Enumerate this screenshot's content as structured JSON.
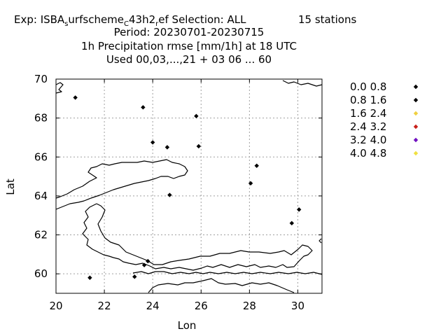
{
  "chart_data": {
    "type": "scatter",
    "title": {
      "line1_pre": "Exp: ISBA",
      "line1_sub1": "s",
      "line1_mid": "urfscheme",
      "line1_sub2": "C",
      "line1_mid2": "43h2",
      "line1_sub3": "r",
      "line1_post": "ef   Selection: ALL",
      "line1_stations": "15 stations",
      "line2": "Period: 20230701-20230715",
      "line3": "1h Precipitation rmse [mm/1h] at  18 UTC",
      "line4": "Used  00,03,...,21  + 03 06 ... 60"
    },
    "xlabel": "Lon",
    "ylabel": "Lat",
    "xlim": [
      20,
      31
    ],
    "ylim": [
      59,
      70
    ],
    "xticks": [
      20,
      22,
      24,
      26,
      28,
      30
    ],
    "yticks": [
      60,
      62,
      64,
      66,
      68,
      70
    ],
    "grid": true,
    "legend_position": "right-outside",
    "legend": [
      {
        "label": "0.0 0.8",
        "color": "#000000"
      },
      {
        "label": "0.8 1.6",
        "color": "#000000"
      },
      {
        "label": "1.6 2.4",
        "color": "#f0d040"
      },
      {
        "label": "2.4 3.2",
        "color": "#c8201a"
      },
      {
        "label": "3.2 4.0",
        "color": "#7010c0"
      },
      {
        "label": "4.0 4.8",
        "color": "#f0e040"
      }
    ],
    "points": [
      {
        "lon": 20.8,
        "lat": 69.05,
        "class": 0
      },
      {
        "lon": 23.6,
        "lat": 68.55,
        "class": 0
      },
      {
        "lon": 25.8,
        "lat": 68.1,
        "class": 0
      },
      {
        "lon": 24.0,
        "lat": 66.75,
        "class": 0
      },
      {
        "lon": 24.6,
        "lat": 66.5,
        "class": 0
      },
      {
        "lon": 25.9,
        "lat": 66.55,
        "class": 0
      },
      {
        "lon": 28.3,
        "lat": 65.55,
        "class": 0
      },
      {
        "lon": 28.05,
        "lat": 64.65,
        "class": 0
      },
      {
        "lon": 24.7,
        "lat": 64.05,
        "class": 0
      },
      {
        "lon": 30.05,
        "lat": 63.3,
        "class": 0
      },
      {
        "lon": 29.75,
        "lat": 62.6,
        "class": 1
      },
      {
        "lon": 23.8,
        "lat": 60.65,
        "class": 0
      },
      {
        "lon": 23.65,
        "lat": 60.45,
        "class": 0
      },
      {
        "lon": 23.25,
        "lat": 59.85,
        "class": 0
      },
      {
        "lon": 21.4,
        "lat": 59.8,
        "class": 0
      }
    ]
  }
}
